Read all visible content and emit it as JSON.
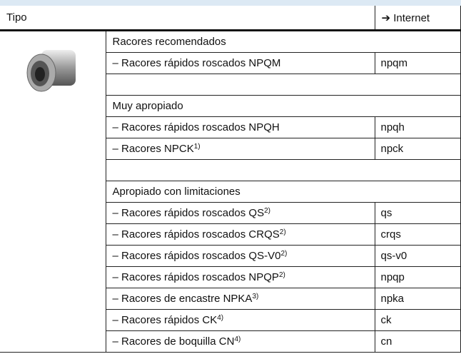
{
  "header": {
    "type_label": "Tipo",
    "link_label": "➔ Internet"
  },
  "sections": [
    {
      "title": "Racores recomendados",
      "items": [
        {
          "text": "– Racores rápidos roscados NPQM",
          "link": "npqm"
        }
      ]
    },
    {
      "title": "Muy apropiado",
      "items": [
        {
          "text": "– Racores rápidos roscados NPQH",
          "link": "npqh"
        },
        {
          "text": "– Racores NPCK",
          "note": "1)",
          "link": "npck"
        }
      ]
    },
    {
      "title": "Apropiado con limitaciones",
      "items": [
        {
          "text": "– Racores rápidos roscados QS",
          "note": "2)",
          "link": "qs"
        },
        {
          "text": "– Racores rápidos roscados CRQS",
          "note": "2)",
          "link": "crqs"
        },
        {
          "text": "– Racores rápidos roscados QS-V0",
          "note": "2)",
          "link": "qs-v0"
        },
        {
          "text": "– Racores rápidos roscados NPQP",
          "note": "2)",
          "link": "npqp"
        },
        {
          "text": "– Racores de encastre NPKA",
          "note": "3)",
          "link": "npka"
        },
        {
          "text": "– Racores rápidos CK",
          "note": "4)",
          "link": "ck"
        },
        {
          "text": "– Racores de boquilla CN",
          "note": "4)",
          "link": "cn"
        }
      ]
    }
  ]
}
